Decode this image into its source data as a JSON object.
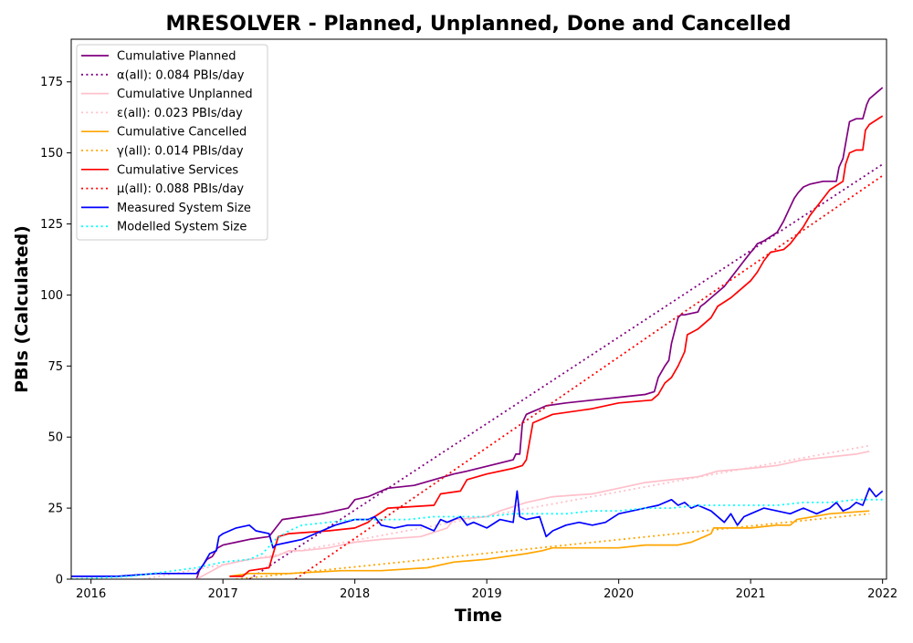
{
  "chart_data": {
    "type": "line",
    "title": "MRESOLVER - Planned, Unplanned, Done  and Cancelled",
    "xlabel": "Time",
    "ylabel": "PBIs (Calculated)",
    "xlim": [
      2015.85,
      2022.03
    ],
    "ylim": [
      0,
      190
    ],
    "x_ticks": [
      2016,
      2017,
      2018,
      2019,
      2020,
      2021,
      2022
    ],
    "y_ticks": [
      0,
      25,
      50,
      75,
      100,
      125,
      150,
      175
    ],
    "grid": false,
    "legend_position": "top-left",
    "series": [
      {
        "name": "Cumulative Planned",
        "color": "#800080",
        "dash": "solid",
        "x": [
          2016.8,
          2016.82,
          2016.85,
          2016.88,
          2016.92,
          2016.96,
          2017.0,
          2017.1,
          2017.2,
          2017.35,
          2017.4,
          2017.45,
          2017.6,
          2017.75,
          2017.95,
          2018.0,
          2018.1,
          2018.2,
          2018.25,
          2018.45,
          2018.6,
          2018.75,
          2018.85,
          2019.2,
          2019.22,
          2019.25,
          2019.27,
          2019.3,
          2019.35,
          2019.4,
          2019.45,
          2019.6,
          2019.8,
          2020.0,
          2020.2,
          2020.27,
          2020.3,
          2020.35,
          2020.38,
          2020.4,
          2020.45,
          2020.47,
          2020.5,
          2020.6,
          2020.62,
          2020.65,
          2020.7,
          2020.75,
          2020.8,
          2020.85,
          2020.9,
          2020.95,
          2021.0,
          2021.02,
          2021.05,
          2021.1,
          2021.2,
          2021.25,
          2021.3,
          2021.33,
          2021.36,
          2021.4,
          2021.45,
          2021.55,
          2021.65,
          2021.67,
          2021.7,
          2021.73,
          2021.75,
          2021.8,
          2021.85,
          2021.88,
          2021.9,
          2021.95,
          2022.0
        ],
        "y": [
          0,
          3,
          5,
          7,
          8,
          11,
          12,
          13,
          14,
          15,
          18,
          21,
          22,
          23,
          25,
          28,
          29,
          31,
          32,
          33,
          35,
          37,
          38,
          42,
          44,
          44,
          55,
          58,
          59,
          60,
          61,
          62,
          63,
          64,
          65,
          66,
          71,
          75,
          77,
          83,
          92,
          93,
          93,
          94,
          96,
          97,
          99,
          101,
          103,
          106,
          109,
          112,
          115,
          116,
          118,
          119,
          122,
          126,
          131,
          134,
          136,
          138,
          139,
          140,
          140,
          145,
          148,
          156,
          161,
          162,
          162,
          167,
          169,
          171,
          173
        ]
      },
      {
        "name": "α(all): 0.084 PBIs/day",
        "color": "#800080",
        "dash": "dotted",
        "x": [
          2017.2,
          2022.0
        ],
        "y": [
          0,
          146
        ]
      },
      {
        "name": "Cumulative Unplanned",
        "color": "#ffc0cb",
        "dash": "solid",
        "x": [
          2016.8,
          2017.0,
          2017.2,
          2017.4,
          2017.5,
          2017.6,
          2017.8,
          2018.0,
          2018.2,
          2018.5,
          2018.7,
          2018.75,
          2019.0,
          2019.1,
          2019.3,
          2019.5,
          2019.8,
          2020.0,
          2020.2,
          2020.4,
          2020.6,
          2020.75,
          2021.0,
          2021.2,
          2021.4,
          2021.6,
          2021.8,
          2021.9
        ],
        "y": [
          0,
          5,
          7,
          8,
          10,
          10,
          11,
          13,
          14,
          15,
          18,
          21,
          22,
          24,
          27,
          29,
          30,
          32,
          34,
          35,
          36,
          38,
          39,
          40,
          42,
          43,
          44,
          45
        ]
      },
      {
        "name": "ε(all): 0.023 PBIs/day",
        "color": "#ffc0cb",
        "dash": "dotted",
        "x": [
          2016.4,
          2021.9
        ],
        "y": [
          0,
          47
        ]
      },
      {
        "name": "Cumulative Cancelled",
        "color": "#ffa500",
        "dash": "solid",
        "x": [
          2017.05,
          2017.2,
          2017.5,
          2017.9,
          2018.2,
          2018.55,
          2018.75,
          2019.0,
          2019.3,
          2019.42,
          2019.5,
          2019.7,
          2020.0,
          2020.2,
          2020.4,
          2020.45,
          2020.55,
          2020.65,
          2020.7,
          2020.72,
          2021.0,
          2021.2,
          2021.3,
          2021.35,
          2021.6,
          2021.9
        ],
        "y": [
          1,
          2,
          2,
          3,
          3,
          4,
          6,
          7,
          9,
          10,
          11,
          11,
          11,
          12,
          12,
          12,
          13,
          15,
          16,
          18,
          18,
          19,
          19,
          21,
          23,
          24
        ]
      },
      {
        "name": "γ(all): 0.014 PBIs/day",
        "color": "#ffa500",
        "dash": "dotted",
        "x": [
          2017.1,
          2021.9
        ],
        "y": [
          0,
          23
        ]
      },
      {
        "name": "Cumulative Services",
        "color": "#ff0000",
        "dash": "solid",
        "x": [
          2017.05,
          2017.15,
          2017.2,
          2017.35,
          2017.4,
          2017.42,
          2017.5,
          2017.8,
          2018.0,
          2018.1,
          2018.15,
          2018.25,
          2018.6,
          2018.65,
          2018.8,
          2018.85,
          2019.0,
          2019.2,
          2019.27,
          2019.3,
          2019.35,
          2019.5,
          2019.8,
          2020.0,
          2020.25,
          2020.3,
          2020.35,
          2020.4,
          2020.45,
          2020.5,
          2020.52,
          2020.6,
          2020.7,
          2020.75,
          2020.85,
          2020.9,
          2021.0,
          2021.05,
          2021.1,
          2021.15,
          2021.25,
          2021.3,
          2021.35,
          2021.4,
          2021.45,
          2021.6,
          2021.7,
          2021.72,
          2021.75,
          2021.8,
          2021.85,
          2021.87,
          2021.9,
          2022.0
        ],
        "y": [
          1,
          1,
          3,
          4,
          12,
          15,
          16,
          17,
          18,
          20,
          22,
          25,
          26,
          30,
          31,
          35,
          37,
          39,
          40,
          42,
          55,
          58,
          60,
          62,
          63,
          65,
          69,
          71,
          75,
          80,
          86,
          88,
          92,
          96,
          99,
          101,
          105,
          108,
          112,
          115,
          116,
          118,
          121,
          124,
          128,
          137,
          140,
          146,
          150,
          151,
          151,
          158,
          160,
          163
        ]
      },
      {
        "name": "μ(all): 0.088 PBIs/day",
        "color": "#ff0000",
        "dash": "dotted",
        "x": [
          2017.55,
          2022.0
        ],
        "y": [
          0,
          142
        ]
      },
      {
        "name": "Measured System Size",
        "color": "#0000ff",
        "dash": "solid",
        "x": [
          2015.85,
          2016.2,
          2016.5,
          2016.8,
          2016.85,
          2016.9,
          2016.95,
          2016.97,
          2017.0,
          2017.05,
          2017.1,
          2017.2,
          2017.25,
          2017.35,
          2017.38,
          2017.4,
          2017.5,
          2017.6,
          2017.7,
          2017.85,
          2018.0,
          2018.1,
          2018.15,
          2018.2,
          2018.3,
          2018.4,
          2018.5,
          2018.6,
          2018.65,
          2018.7,
          2018.8,
          2018.85,
          2018.9,
          2019.0,
          2019.1,
          2019.2,
          2019.23,
          2019.25,
          2019.3,
          2019.4,
          2019.45,
          2019.5,
          2019.6,
          2019.7,
          2019.8,
          2019.9,
          2020.0,
          2020.1,
          2020.2,
          2020.3,
          2020.4,
          2020.45,
          2020.5,
          2020.55,
          2020.6,
          2020.7,
          2020.8,
          2020.85,
          2020.9,
          2020.95,
          2021.0,
          2021.1,
          2021.2,
          2021.3,
          2021.35,
          2021.4,
          2021.5,
          2021.55,
          2021.6,
          2021.65,
          2021.7,
          2021.75,
          2021.8,
          2021.85,
          2021.9,
          2021.95,
          2022.0
        ],
        "y": [
          1,
          1,
          2,
          2,
          5,
          9,
          10,
          15,
          16,
          17,
          18,
          19,
          17,
          16,
          11,
          12,
          13,
          14,
          16,
          19,
          21,
          21,
          22,
          19,
          18,
          19,
          19,
          17,
          21,
          20,
          22,
          19,
          20,
          18,
          21,
          20,
          31,
          22,
          21,
          22,
          15,
          17,
          19,
          20,
          19,
          20,
          23,
          24,
          25,
          26,
          28,
          26,
          27,
          25,
          26,
          24,
          20,
          23,
          19,
          22,
          23,
          25,
          24,
          23,
          24,
          25,
          23,
          24,
          25,
          27,
          24,
          25,
          27,
          26,
          32,
          29,
          31
        ]
      },
      {
        "name": "Modelled System Size",
        "color": "#00ffff",
        "dash": "dotted",
        "x": [
          2015.85,
          2016.3,
          2016.8,
          2017.0,
          2017.2,
          2017.3,
          2017.4,
          2017.5,
          2017.6,
          2017.8,
          2018.0,
          2018.2,
          2018.4,
          2018.6,
          2018.8,
          2019.0,
          2019.2,
          2019.4,
          2019.6,
          2019.8,
          2020.0,
          2020.2,
          2020.4,
          2020.6,
          2020.8,
          2021.0,
          2021.2,
          2021.4,
          2021.6,
          2021.8,
          2022.0
        ],
        "y": [
          0,
          1,
          4,
          6,
          7,
          9,
          14,
          17,
          19,
          20,
          21,
          21,
          21,
          22,
          22,
          22,
          23,
          23,
          23,
          24,
          24,
          25,
          25,
          26,
          26,
          26,
          26,
          27,
          27,
          28,
          28
        ]
      }
    ]
  }
}
